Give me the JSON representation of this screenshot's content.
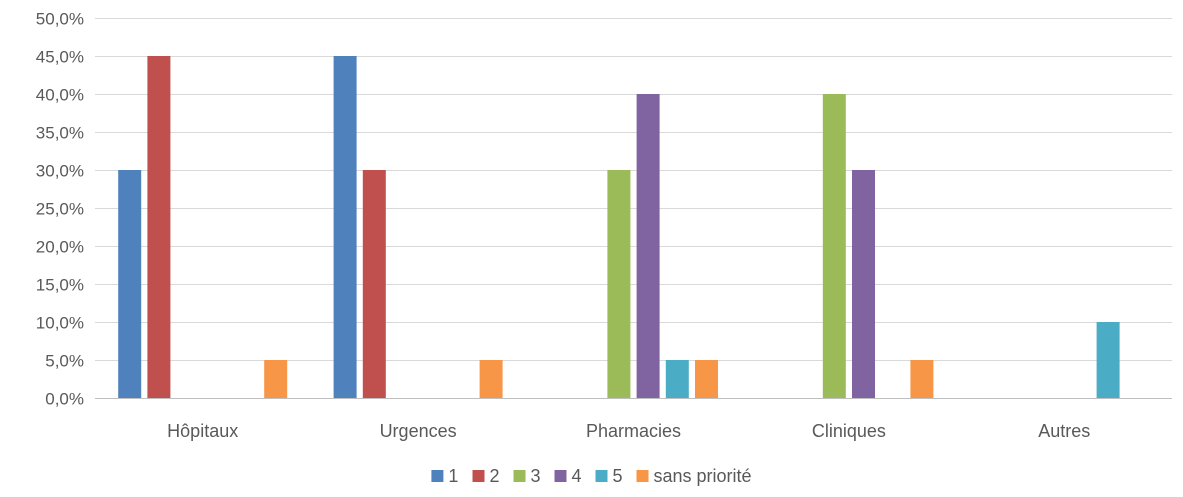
{
  "chart_data": {
    "type": "bar",
    "categories": [
      "Hôpitaux",
      "Urgences",
      "Pharmacies",
      "Cliniques",
      "Autres"
    ],
    "series": [
      {
        "name": "1",
        "color": "#4f81bd",
        "values": [
          30,
          45,
          0,
          0,
          0
        ]
      },
      {
        "name": "2",
        "color": "#c0504d",
        "values": [
          45,
          30,
          0,
          0,
          0
        ]
      },
      {
        "name": "3",
        "color": "#9bbb59",
        "values": [
          0,
          0,
          30,
          40,
          0
        ]
      },
      {
        "name": "4",
        "color": "#8064a2",
        "values": [
          0,
          0,
          40,
          30,
          0
        ]
      },
      {
        "name": "5",
        "color": "#4bacc6",
        "values": [
          0,
          0,
          5,
          0,
          10
        ]
      },
      {
        "name": "sans priorité",
        "color": "#f79646",
        "values": [
          5,
          5,
          5,
          5,
          0
        ]
      }
    ],
    "ylim": [
      0,
      50
    ],
    "ytick_step": 5,
    "ytick_labels": [
      "0,0%",
      "5,0%",
      "10,0%",
      "15,0%",
      "20,0%",
      "25,0%",
      "30,0%",
      "35,0%",
      "40,0%",
      "45,0%",
      "50,0%"
    ],
    "grid": true,
    "legend_position": "bottom"
  }
}
